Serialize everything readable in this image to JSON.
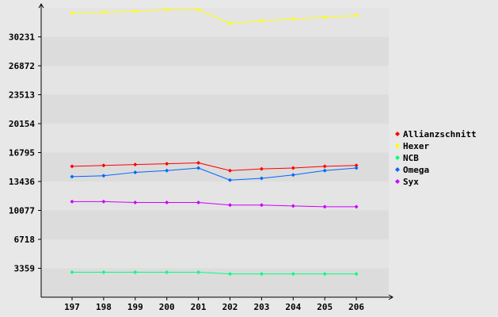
{
  "chart_data": {
    "type": "line",
    "title": "",
    "xlabel": "",
    "ylabel": "",
    "categories": [
      "197",
      "198",
      "199",
      "200",
      "201",
      "202",
      "203",
      "204",
      "205",
      "206"
    ],
    "y_ticks": [
      "3359",
      "6718",
      "10077",
      "13436",
      "16795",
      "20154",
      "23513",
      "26872",
      "30231"
    ],
    "ylim": [
      0,
      33590
    ],
    "grid": "horizontal alternating bands",
    "legend_position": "right",
    "series": [
      {
        "name": "Allianzschnitt",
        "color": "#ff0000",
        "values": [
          15200,
          15300,
          15400,
          15500,
          15600,
          14700,
          14900,
          15000,
          15200,
          15300
        ]
      },
      {
        "name": "Hexer",
        "color": "#ffff00",
        "values": [
          33000,
          33100,
          33200,
          33400,
          33400,
          31800,
          32100,
          32300,
          32500,
          32700
        ]
      },
      {
        "name": "NCB",
        "color": "#00ff80",
        "values": [
          2900,
          2900,
          2900,
          2900,
          2900,
          2700,
          2700,
          2700,
          2700,
          2700
        ]
      },
      {
        "name": "Omega",
        "color": "#0066ff",
        "values": [
          14000,
          14100,
          14500,
          14700,
          15000,
          13600,
          13800,
          14200,
          14700,
          15000
        ]
      },
      {
        "name": "Syx",
        "color": "#cc00ff",
        "values": [
          11100,
          11100,
          11000,
          11000,
          11000,
          10700,
          10700,
          10600,
          10500,
          10500
        ]
      }
    ]
  }
}
